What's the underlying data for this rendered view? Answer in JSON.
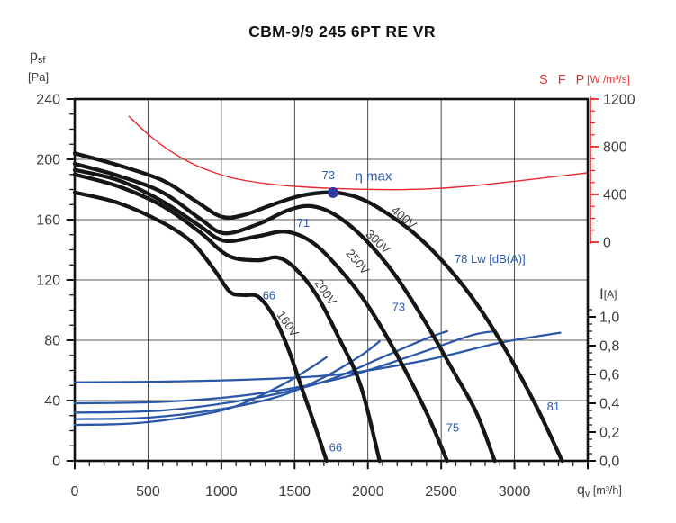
{
  "title": "CBM-9/9 245 6PT RE VR",
  "colors": {
    "text": "#3c3c3c",
    "grid": "#222222",
    "border": "#111111",
    "pressure_curve": "#161616",
    "current_curve": "#2b57a8",
    "sfp_curve": "#e8282e",
    "sfp_text": "#e63434",
    "annotation_blue": "#2b59ad",
    "eta_dot": "#333a9e"
  },
  "chart_data": {
    "type": "line",
    "title": "CBM-9/9 245 6PT RE VR",
    "grid": "on",
    "axes": {
      "flow": {
        "symbol": "q",
        "sub": "v",
        "unit": "[m³/h]",
        "min": 0,
        "max": 3500,
        "major": 500,
        "minor": 100,
        "tick_labels": [
          "0",
          "500",
          "1000",
          "1500",
          "2000",
          "2500",
          "3000"
        ]
      },
      "pressure": {
        "symbol": "p",
        "sub": "sf",
        "unit": "[Pa]",
        "min": 0,
        "max": 240,
        "major": 40,
        "minor": 10,
        "tick_labels": [
          "0",
          "40",
          "80",
          "120",
          "160",
          "200",
          "240"
        ]
      },
      "sfp": {
        "label": "S F P",
        "unit": "[W /m³/s]",
        "min": 0,
        "max": 1200,
        "major": 400,
        "minor": 100,
        "tick_labels": [
          "0",
          "400",
          "800",
          "1200"
        ]
      },
      "current": {
        "symbol": "I",
        "unit": "[A]",
        "min": 0,
        "max": 1.0,
        "major": 0.2,
        "minor": 0.05,
        "tick_labels": [
          "0,0",
          "0,2",
          "0,4",
          "0,6",
          "0,8",
          "1,0"
        ]
      }
    },
    "pressure_series": [
      {
        "name": "160V",
        "points": [
          [
            0,
            178
          ],
          [
            300,
            171
          ],
          [
            600,
            158
          ],
          [
            800,
            145
          ],
          [
            950,
            127
          ],
          [
            1060,
            112
          ],
          [
            1150,
            110
          ],
          [
            1250,
            109
          ],
          [
            1350,
            97
          ],
          [
            1450,
            76
          ],
          [
            1550,
            48
          ],
          [
            1650,
            20
          ],
          [
            1718,
            0
          ]
        ]
      },
      {
        "name": "200V",
        "points": [
          [
            0,
            190
          ],
          [
            300,
            182
          ],
          [
            600,
            169
          ],
          [
            850,
            152
          ],
          [
            1050,
            136
          ],
          [
            1250,
            133
          ],
          [
            1380,
            135
          ],
          [
            1500,
            128
          ],
          [
            1650,
            110
          ],
          [
            1800,
            82
          ],
          [
            1950,
            50
          ],
          [
            2080,
            0
          ]
        ]
      },
      {
        "name": "250V",
        "points": [
          [
            0,
            193
          ],
          [
            300,
            186
          ],
          [
            600,
            172
          ],
          [
            850,
            156
          ],
          [
            1020,
            146
          ],
          [
            1250,
            149
          ],
          [
            1440,
            152
          ],
          [
            1620,
            145
          ],
          [
            1800,
            128
          ],
          [
            2000,
            103
          ],
          [
            2200,
            70
          ],
          [
            2400,
            32
          ],
          [
            2540,
            0
          ]
        ]
      },
      {
        "name": "300V",
        "points": [
          [
            0,
            197
          ],
          [
            300,
            189
          ],
          [
            600,
            178
          ],
          [
            850,
            161
          ],
          [
            1020,
            151
          ],
          [
            1250,
            157
          ],
          [
            1450,
            166
          ],
          [
            1610,
            169
          ],
          [
            1780,
            163
          ],
          [
            1980,
            147
          ],
          [
            2180,
            124
          ],
          [
            2380,
            94
          ],
          [
            2580,
            60
          ],
          [
            2740,
            32
          ],
          [
            2865,
            0
          ]
        ]
      },
      {
        "name": "400V",
        "points": [
          [
            0,
            204
          ],
          [
            300,
            196
          ],
          [
            600,
            186
          ],
          [
            830,
            172
          ],
          [
            1000,
            162
          ],
          [
            1150,
            163
          ],
          [
            1350,
            170
          ],
          [
            1550,
            176
          ],
          [
            1762,
            178
          ],
          [
            1950,
            174
          ],
          [
            2150,
            163
          ],
          [
            2350,
            148
          ],
          [
            2550,
            128
          ],
          [
            2750,
            103
          ],
          [
            2950,
            72
          ],
          [
            3150,
            36
          ],
          [
            3325,
            0
          ]
        ]
      }
    ],
    "current_series": [
      {
        "name": "160V",
        "points": [
          [
            0,
            0.25
          ],
          [
            400,
            0.26
          ],
          [
            800,
            0.31
          ],
          [
            1100,
            0.38
          ],
          [
            1400,
            0.52
          ],
          [
            1600,
            0.64
          ],
          [
            1718,
            0.72
          ]
        ]
      },
      {
        "name": "200V",
        "points": [
          [
            0,
            0.29
          ],
          [
            500,
            0.3
          ],
          [
            1000,
            0.36
          ],
          [
            1400,
            0.45
          ],
          [
            1700,
            0.58
          ],
          [
            1950,
            0.73
          ],
          [
            2080,
            0.83
          ]
        ]
      },
      {
        "name": "250V",
        "points": [
          [
            0,
            0.335
          ],
          [
            600,
            0.35
          ],
          [
            1200,
            0.43
          ],
          [
            1700,
            0.55
          ],
          [
            2100,
            0.72
          ],
          [
            2400,
            0.85
          ],
          [
            2540,
            0.9
          ]
        ]
      },
      {
        "name": "300V",
        "points": [
          [
            0,
            0.4
          ],
          [
            600,
            0.41
          ],
          [
            1200,
            0.46
          ],
          [
            1800,
            0.57
          ],
          [
            2300,
            0.73
          ],
          [
            2700,
            0.87
          ],
          [
            2865,
            0.9
          ]
        ]
      },
      {
        "name": "400V",
        "points": [
          [
            0,
            0.545
          ],
          [
            600,
            0.55
          ],
          [
            1200,
            0.565
          ],
          [
            1800,
            0.6
          ],
          [
            2400,
            0.7
          ],
          [
            2900,
            0.82
          ],
          [
            3313,
            0.89
          ]
        ]
      }
    ],
    "sfp_series": {
      "name": "SFP",
      "points": [
        [
          368,
          1057
        ],
        [
          500,
          905
        ],
        [
          650,
          765
        ],
        [
          800,
          660
        ],
        [
          950,
          585
        ],
        [
          1100,
          532
        ],
        [
          1300,
          492
        ],
        [
          1500,
          468
        ],
        [
          1750,
          451
        ],
        [
          2000,
          443
        ],
        [
          2250,
          441
        ],
        [
          2500,
          452
        ],
        [
          2750,
          477
        ],
        [
          3000,
          510
        ],
        [
          3250,
          546
        ],
        [
          3497,
          581
        ]
      ]
    },
    "eta_max": {
      "q": 1762,
      "p": 178,
      "label": "η max",
      "label_q": 2038,
      "label_p": 189,
      "value_label": "73",
      "value_q": 1731,
      "value_p": 190
    },
    "annotations": [
      {
        "text": "66",
        "q": 1326,
        "p": 110,
        "style": "blue",
        "anchor": "middle",
        "rot": 0
      },
      {
        "text": "71",
        "q": 1559,
        "p": 158,
        "style": "blue",
        "anchor": "middle",
        "rot": 0
      },
      {
        "text": "73",
        "q": 2210,
        "p": 102,
        "style": "blue",
        "anchor": "middle",
        "rot": 0
      },
      {
        "text": "78  Lw [dB(A)]",
        "q": 2591,
        "p": 134,
        "style": "blue",
        "anchor": "start",
        "rot": 0
      },
      {
        "text": "75",
        "q": 2578,
        "p": 22,
        "style": "blue",
        "anchor": "middle",
        "rot": 0
      },
      {
        "text": "81",
        "q": 3266,
        "p": 36,
        "style": "blue",
        "anchor": "middle",
        "rot": 0
      },
      {
        "text": "66",
        "q": 1780,
        "p": 9,
        "style": "blue",
        "anchor": "middle",
        "rot": 0
      },
      {
        "text": "400V",
        "q": 2228,
        "p": 162,
        "style": "volt",
        "anchor": "middle",
        "rot": 40
      },
      {
        "text": "300V",
        "q": 2050,
        "p": 146,
        "style": "volt",
        "anchor": "middle",
        "rot": 43
      },
      {
        "text": "250V",
        "q": 1909,
        "p": 133,
        "style": "volt",
        "anchor": "middle",
        "rot": 50
      },
      {
        "text": "200V",
        "q": 1688,
        "p": 113,
        "style": "volt",
        "anchor": "middle",
        "rot": 55
      },
      {
        "text": "160V",
        "q": 1430,
        "p": 92,
        "style": "volt",
        "anchor": "middle",
        "rot": 55
      }
    ]
  }
}
